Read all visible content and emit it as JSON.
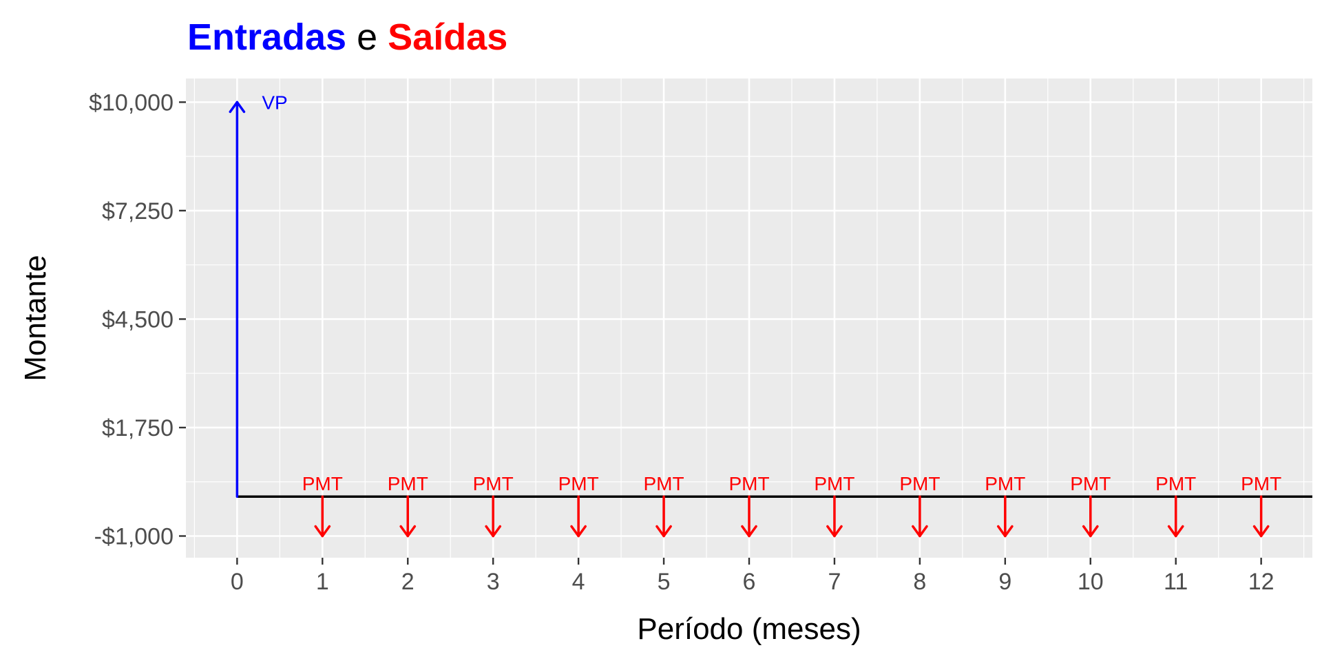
{
  "chart_data": {
    "type": "cash-flow-arrows",
    "title_parts": [
      {
        "text": "Entradas",
        "color": "#0000ff",
        "bold": true
      },
      {
        "text": " e ",
        "color": "#000000",
        "bold": false
      },
      {
        "text": "Saídas",
        "color": "#ff0000",
        "bold": true
      }
    ],
    "xlabel": "Período (meses)",
    "ylabel": "Montante",
    "xlim": [
      -0.6,
      12.6
    ],
    "ylim": [
      -1550,
      10600
    ],
    "x_ticks": [
      0,
      1,
      2,
      3,
      4,
      5,
      6,
      7,
      8,
      9,
      10,
      11,
      12
    ],
    "x_tick_labels": [
      "0",
      "1",
      "2",
      "3",
      "4",
      "5",
      "6",
      "7",
      "8",
      "9",
      "10",
      "11",
      "12"
    ],
    "y_ticks": [
      -1000,
      1750,
      4500,
      7250,
      10000
    ],
    "y_tick_labels": [
      "-$1,000",
      "$1,750",
      "$4,500",
      "$7,250",
      "$10,000"
    ],
    "baseline": 0,
    "grid": true,
    "colors": {
      "inflow": "#0000ff",
      "outflow": "#ff0000",
      "baseline": "#000000",
      "panel": "#ebebeb",
      "grid": "#ffffff"
    },
    "inflows": [
      {
        "period": 0,
        "value": 10000,
        "label": "VP"
      }
    ],
    "outflows": [
      {
        "period": 1,
        "value": -1000,
        "label": "PMT"
      },
      {
        "period": 2,
        "value": -1000,
        "label": "PMT"
      },
      {
        "period": 3,
        "value": -1000,
        "label": "PMT"
      },
      {
        "period": 4,
        "value": -1000,
        "label": "PMT"
      },
      {
        "period": 5,
        "value": -1000,
        "label": "PMT"
      },
      {
        "period": 6,
        "value": -1000,
        "label": "PMT"
      },
      {
        "period": 7,
        "value": -1000,
        "label": "PMT"
      },
      {
        "period": 8,
        "value": -1000,
        "label": "PMT"
      },
      {
        "period": 9,
        "value": -1000,
        "label": "PMT"
      },
      {
        "period": 10,
        "value": -1000,
        "label": "PMT"
      },
      {
        "period": 11,
        "value": -1000,
        "label": "PMT"
      },
      {
        "period": 12,
        "value": -1000,
        "label": "PMT"
      }
    ]
  }
}
